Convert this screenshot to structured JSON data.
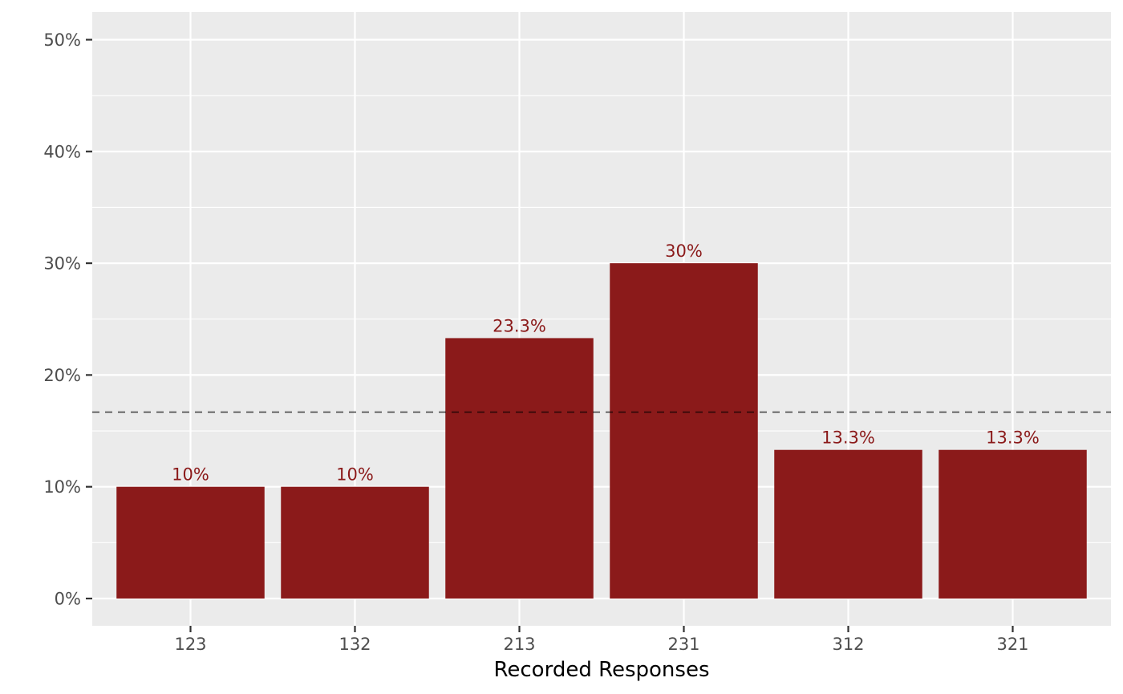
{
  "chart_data": {
    "type": "bar",
    "categories": [
      "123",
      "132",
      "213",
      "231",
      "312",
      "321"
    ],
    "values": [
      10,
      10,
      23.3,
      30,
      13.3,
      13.3
    ],
    "data_labels": [
      "10%",
      "10%",
      "23.3%",
      "30%",
      "13.3%",
      "13.3%"
    ],
    "title": "",
    "xlabel": "Recorded Responses",
    "ylabel": "",
    "ylim": [
      -2.4,
      52.5
    ],
    "yticks": [
      0,
      10,
      20,
      30,
      40,
      50
    ],
    "ytick_labels": [
      "0%",
      "10%",
      "20%",
      "30%",
      "40%",
      "50%"
    ],
    "reference_line": {
      "value": 16.67,
      "style": "dashed"
    },
    "grid": true,
    "legend": "none"
  },
  "colors": {
    "bar": "#8b1a1a",
    "data_label": "#8b1a1a",
    "panel": "#ebebeb",
    "gridline": "#ffffff",
    "reference_line": "#000000"
  }
}
